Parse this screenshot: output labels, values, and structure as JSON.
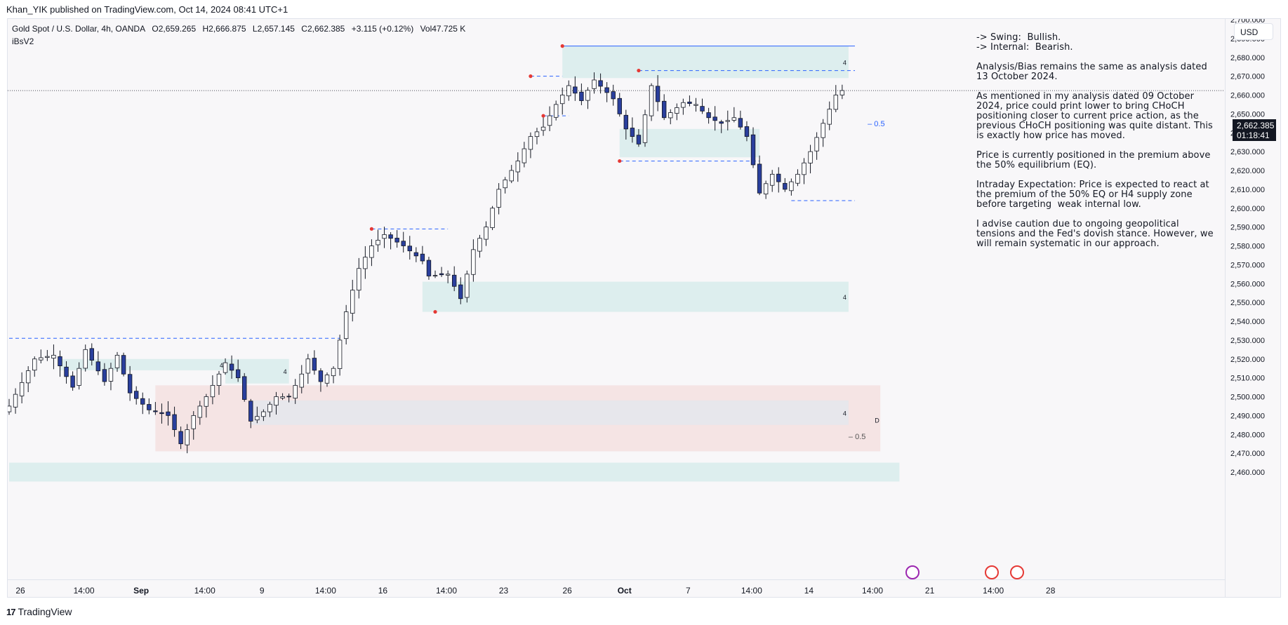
{
  "header": {
    "published": "Khan_YIK published on TradingView.com, Oct 14, 2024 08:41 UTC+1"
  },
  "legend": {
    "symbol": "Gold Spot / U.S. Dollar, 4h, OANDA",
    "open": "O2,659.265",
    "high": "H2,666.875",
    "low": "L2,657.145",
    "close": "C2,662.385",
    "change": "+3.115 (+0.12%)",
    "vol": "Vol47.725 K",
    "indicator": "iBsV2"
  },
  "currency_button": "USD",
  "last_price": {
    "value": "2,662.385",
    "countdown": "01:18:41"
  },
  "notes": [
    "-> Swing:  Bullish.\n-> Internal:  Bearish.",
    "Analysis/Bias remains the same as analysis dated 13 October 2024.",
    "As mentioned in my analysis dated 09 October 2024, price could print lower to bring CHoCH positioning closer to current price action, as the previous CHoCH positioning was quite distant. This is exactly how price has moved.",
    "Price is currently positioned in the premium above the 50% equilibrium (EQ).",
    "Intraday Expectation: Price is expected to react at the premium of the 50% EQ or H4 supply zone before targeting  weak internal low.",
    "I advise caution due to ongoing geopolitical tensions and the Fed's dovish stance. However, we will remain systematic in our approach."
  ],
  "footer": {
    "brand": "TradingView",
    "logo": "17"
  },
  "colors": {
    "up": "#ffffff",
    "down": "#2a3f9d",
    "wick": "#131722",
    "demand": "#d9ecec",
    "supply": "#f4e1e1",
    "line": "#2962ff",
    "marker": "#e53935"
  },
  "chart_data": {
    "type": "candlestick",
    "symbol": "XAUUSD",
    "timeframe": "4h",
    "ylim": [
      2453,
      2703
    ],
    "y_ticks": [
      2460,
      2470,
      2480,
      2490,
      2500,
      2510,
      2520,
      2530,
      2540,
      2550,
      2560,
      2570,
      2580,
      2590,
      2600,
      2610,
      2620,
      2630,
      2640,
      2650,
      2660,
      2670,
      2680,
      2690,
      2700
    ],
    "y_tick_labels": [
      "2,460.000",
      "2,470.000",
      "2,480.000",
      "2,490.000",
      "2,500.000",
      "2,510.000",
      "2,520.000",
      "2,530.000",
      "2,540.000",
      "2,550.000",
      "2,560.000",
      "2,570.000",
      "2,580.000",
      "2,590.000",
      "2,600.000",
      "2,610.000",
      "2,620.000",
      "2,630.000",
      "2,640.000",
      "2,650.000",
      "2,660.000",
      "2,670.000",
      "2,680.000",
      "2,690.000",
      "2,700.000"
    ],
    "x_labels": [
      "26",
      "14:00",
      "Sep",
      "14:00",
      "9",
      "14:00",
      "16",
      "14:00",
      "23",
      "26",
      "Oct",
      "7",
      "14:00",
      "14",
      "14:00",
      "21",
      "14:00",
      "28"
    ],
    "x_label_bars": [
      0,
      10,
      19,
      29,
      38,
      48,
      57,
      67,
      76,
      86,
      95,
      105,
      115,
      124,
      134,
      143,
      153,
      162
    ],
    "bold_x_labels": [
      "Sep",
      "Oct"
    ],
    "last_close": 2662.385,
    "anchors": [
      [
        0,
        2495
      ],
      [
        4,
        2520
      ],
      [
        7,
        2522
      ],
      [
        10,
        2505
      ],
      [
        12,
        2525
      ],
      [
        15,
        2508
      ],
      [
        17,
        2522
      ],
      [
        19,
        2502
      ],
      [
        22,
        2493
      ],
      [
        25,
        2490
      ],
      [
        27,
        2475
      ],
      [
        29,
        2490
      ],
      [
        31,
        2500
      ],
      [
        34,
        2518
      ],
      [
        36,
        2510
      ],
      [
        38,
        2487
      ],
      [
        40,
        2492
      ],
      [
        42,
        2500
      ],
      [
        44,
        2500
      ],
      [
        46,
        2512
      ],
      [
        47,
        2520
      ],
      [
        49,
        2508
      ],
      [
        51,
        2515
      ],
      [
        53,
        2545
      ],
      [
        55,
        2568
      ],
      [
        57,
        2580
      ],
      [
        59,
        2586
      ],
      [
        62,
        2580
      ],
      [
        65,
        2572
      ],
      [
        66,
        2564
      ],
      [
        69,
        2565
      ],
      [
        71,
        2552
      ],
      [
        73,
        2578
      ],
      [
        75,
        2590
      ],
      [
        77,
        2610
      ],
      [
        80,
        2625
      ],
      [
        82,
        2638
      ],
      [
        84,
        2643
      ],
      [
        86,
        2655
      ],
      [
        88,
        2665
      ],
      [
        90,
        2657
      ],
      [
        92,
        2668
      ],
      [
        95,
        2658
      ],
      [
        97,
        2642
      ],
      [
        99,
        2634
      ],
      [
        101,
        2665
      ],
      [
        103,
        2648
      ],
      [
        106,
        2656
      ],
      [
        108,
        2655
      ],
      [
        110,
        2648
      ],
      [
        112,
        2645
      ],
      [
        114,
        2648
      ],
      [
        116,
        2638
      ],
      [
        118,
        2608
      ],
      [
        120,
        2618
      ],
      [
        122,
        2610
      ],
      [
        124,
        2618
      ],
      [
        126,
        2630
      ],
      [
        128,
        2645
      ],
      [
        130,
        2660
      ],
      [
        131,
        2662.385
      ]
    ],
    "zones": [
      {
        "kind": "demand",
        "from_bar": 87,
        "to_bar": 132,
        "y": [
          2669,
          2686
        ],
        "label": "4"
      },
      {
        "kind": "demand",
        "from_bar": 96,
        "to_bar": 118,
        "y": [
          2627,
          2642
        ],
        "label": ""
      },
      {
        "kind": "demand",
        "from_bar": 65,
        "to_bar": 132,
        "y": [
          2545,
          2561
        ],
        "label": "4"
      },
      {
        "kind": "demand",
        "from_bar": 8,
        "to_bar": 34,
        "y": [
          2514,
          2520
        ],
        "label": "4"
      },
      {
        "kind": "demand",
        "from_bar": 34,
        "to_bar": 44,
        "y": [
          2507,
          2520
        ],
        "label": "4"
      },
      {
        "kind": "supply",
        "from_bar": 23,
        "to_bar": 137,
        "y": [
          2471,
          2506
        ],
        "label": "D"
      },
      {
        "kind": "mixed",
        "from_bar": 38,
        "to_bar": 132,
        "y": [
          2485,
          2498
        ],
        "label": "4"
      },
      {
        "kind": "demand",
        "from_bar": 0,
        "to_bar": 140,
        "y": [
          2455,
          2465
        ],
        "label": ""
      }
    ],
    "levels": [
      {
        "from_bar": 87,
        "to_bar": 133,
        "y": 2686,
        "style": "solid"
      },
      {
        "from_bar": 99,
        "to_bar": 133,
        "y": 2673,
        "style": "dashed"
      },
      {
        "from_bar": 82,
        "to_bar": 87,
        "y": 2670,
        "style": "dashed"
      },
      {
        "from_bar": 84,
        "to_bar": 88,
        "y": 2649,
        "style": "dashed"
      },
      {
        "from_bar": 96,
        "to_bar": 118,
        "y": 2625,
        "style": "dashed"
      },
      {
        "from_bar": 123,
        "to_bar": 133,
        "y": 2604,
        "style": "dashed"
      },
      {
        "from_bar": 57,
        "to_bar": 69,
        "y": 2589,
        "style": "dashed"
      },
      {
        "from_bar": 0,
        "to_bar": 52,
        "y": 2531,
        "style": "dashed"
      }
    ],
    "eq_labels": [
      {
        "bar": 135,
        "y": 2645,
        "text": "0.5",
        "color": "#2962ff"
      },
      {
        "bar": 132,
        "y": 2479,
        "text": "0.5",
        "color": "#555"
      }
    ],
    "markers": [
      [
        82,
        2670
      ],
      [
        87,
        2686
      ],
      [
        99,
        2673
      ],
      [
        84,
        2649
      ],
      [
        96,
        2625
      ],
      [
        57,
        2589
      ],
      [
        67,
        2545
      ]
    ]
  }
}
